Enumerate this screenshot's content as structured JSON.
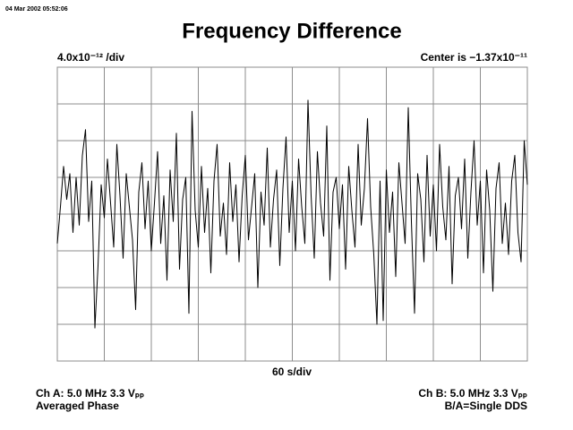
{
  "chart_data": {
    "type": "line",
    "timestamp": "04 Mar 2002 05:52:06",
    "title": "Frequency Difference",
    "y_scale_label": "4.0x10⁻¹² /div",
    "center_label": "Center is −1.37x10⁻¹¹",
    "x_scale_label": "60 s/div",
    "channel_a": [
      "Ch A: 5.0 MHz 3.3 Vₚₚ",
      "Averaged Phase"
    ],
    "channel_b": [
      "Ch B: 5.0 MHz 3.3 Vₚₚ",
      "B/A=Single DDS"
    ],
    "xlim": [
      0,
      600
    ],
    "ylim": [
      -4,
      4
    ],
    "xticks": [
      0,
      60,
      120,
      180,
      240,
      300,
      360,
      420,
      480,
      540,
      600
    ],
    "yticks": [
      -4,
      -3,
      -2,
      -1,
      0,
      1,
      2,
      3,
      4
    ],
    "grid": true,
    "color": "#000000",
    "x": [
      0,
      4,
      8,
      12,
      16,
      20,
      24,
      28,
      32,
      36,
      40,
      44,
      48,
      52,
      56,
      60,
      64,
      68,
      72,
      76,
      80,
      84,
      88,
      92,
      96,
      100,
      104,
      108,
      112,
      116,
      120,
      124,
      128,
      132,
      136,
      140,
      144,
      148,
      152,
      156,
      160,
      164,
      168,
      172,
      176,
      180,
      184,
      188,
      192,
      196,
      200,
      204,
      208,
      212,
      216,
      220,
      224,
      228,
      232,
      236,
      240,
      244,
      248,
      252,
      256,
      260,
      264,
      268,
      272,
      276,
      280,
      284,
      288,
      292,
      296,
      300,
      304,
      308,
      312,
      316,
      320,
      324,
      328,
      332,
      336,
      340,
      344,
      348,
      352,
      356,
      360,
      364,
      368,
      372,
      376,
      380,
      384,
      388,
      392,
      396,
      400,
      404,
      408,
      412,
      416,
      420,
      424,
      428,
      432,
      436,
      440,
      444,
      448,
      452,
      456,
      460,
      464,
      468,
      472,
      476,
      480,
      484,
      488,
      492,
      496,
      500,
      504,
      508,
      512,
      516,
      520,
      524,
      528,
      532,
      536,
      540,
      544,
      548,
      552,
      556,
      560,
      564,
      568,
      572,
      576,
      580,
      584,
      588,
      592,
      596,
      600
    ],
    "values": [
      -0.8,
      0.2,
      1.3,
      0.4,
      1.1,
      -0.5,
      1.0,
      -0.3,
      1.6,
      2.3,
      -0.2,
      0.9,
      -3.1,
      -1.4,
      0.8,
      -0.1,
      1.5,
      0.3,
      -0.9,
      1.9,
      0.5,
      -1.2,
      1.1,
      0.2,
      -0.7,
      -2.6,
      0.6,
      1.4,
      -0.4,
      0.9,
      -1.0,
      0.3,
      1.7,
      -0.8,
      0.5,
      -1.8,
      1.2,
      -0.2,
      2.2,
      -1.5,
      0.4,
      1.0,
      -2.7,
      2.8,
      0.1,
      -0.9,
      1.3,
      -0.5,
      0.7,
      -1.6,
      0.9,
      1.9,
      -0.6,
      0.3,
      -1.1,
      1.4,
      -0.2,
      0.8,
      -1.3,
      0.5,
      1.6,
      -0.7,
      0.2,
      1.1,
      -2.0,
      0.6,
      -0.3,
      1.8,
      -0.9,
      0.4,
      1.2,
      -1.4,
      0.7,
      2.1,
      -0.5,
      0.9,
      -1.0,
      1.5,
      0.2,
      -0.8,
      3.1,
      0.5,
      -1.2,
      1.7,
      0.3,
      -0.6,
      2.4,
      -1.8,
      0.6,
      1.0,
      -0.4,
      0.8,
      -1.5,
      1.3,
      0.1,
      -0.9,
      1.9,
      -0.3,
      0.7,
      2.6,
      0.2,
      -1.1,
      -3.0,
      0.9,
      -2.9,
      1.2,
      -0.5,
      0.6,
      -1.7,
      1.4,
      0.3,
      -0.8,
      2.9,
      -0.2,
      -2.7,
      1.1,
      0.4,
      -1.3,
      1.6,
      -0.6,
      0.8,
      -1.0,
      1.9,
      0.2,
      -0.7,
      1.3,
      -1.9,
      0.5,
      1.0,
      -0.4,
      1.5,
      -1.2,
      0.6,
      2.0,
      -0.3,
      0.9,
      -1.6,
      1.2,
      0.1,
      -2.1,
      0.7,
      1.4,
      -0.8,
      0.3,
      -1.1,
      0.9,
      1.6,
      -0.5,
      -1.3,
      2.0,
      0.8
    ]
  }
}
